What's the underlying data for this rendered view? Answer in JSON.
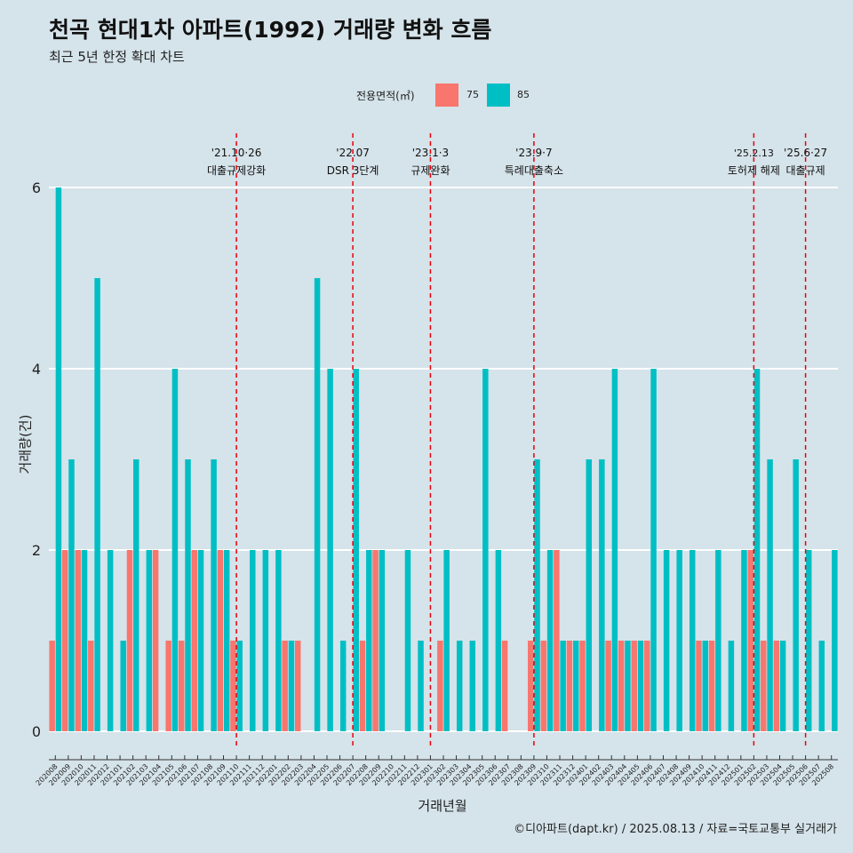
{
  "header": {
    "title": "천곡 현대1차 아파트(1992) 거래량 변화 흐름",
    "subtitle": "최근 5년 한정 확대 차트"
  },
  "caption": "©디아파트(dapt.kr) / 2025.08.13 / 자료=국토교통부 실거래가",
  "colors": {
    "background": "#d5e3ea",
    "grid": "#ffffff",
    "series_75": "#f8766d",
    "series_85": "#00bfc4",
    "event_line": "#e8000b"
  },
  "chart_data": {
    "type": "bar",
    "title": "천곡 현대1차 아파트(1992) 거래량 변화 흐름",
    "xlabel": "거래년월",
    "ylabel": "거래량(건)",
    "ylim": [
      0,
      6
    ],
    "yticks": [
      0,
      2,
      4,
      6
    ],
    "legend": {
      "title": "전용면적(㎡)",
      "position": "top",
      "entries": [
        "75",
        "85"
      ]
    },
    "categories": [
      "202008",
      "202009",
      "202010",
      "202011",
      "202012",
      "202101",
      "202102",
      "202103",
      "202104",
      "202105",
      "202106",
      "202107",
      "202108",
      "202109",
      "202110",
      "202111",
      "202112",
      "202201",
      "202202",
      "202203",
      "202204",
      "202205",
      "202206",
      "202207",
      "202208",
      "202209",
      "202210",
      "202211",
      "202212",
      "202301",
      "202302",
      "202303",
      "202304",
      "202305",
      "202306",
      "202307",
      "202308",
      "202309",
      "202310",
      "202311",
      "202312",
      "202401",
      "202402",
      "202403",
      "202404",
      "202405",
      "202406",
      "202407",
      "202408",
      "202409",
      "202410",
      "202411",
      "202412",
      "202501",
      "202502",
      "202503",
      "202504",
      "202505",
      "202506",
      "202507",
      "202508"
    ],
    "series": [
      {
        "name": "75",
        "values": [
          1,
          2,
          2,
          1,
          0,
          0,
          2,
          0,
          2,
          1,
          1,
          2,
          0,
          2,
          1,
          0,
          0,
          0,
          1,
          1,
          0,
          0,
          0,
          0,
          1,
          2,
          0,
          0,
          0,
          0,
          1,
          0,
          0,
          0,
          0,
          1,
          0,
          1,
          1,
          2,
          1,
          1,
          0,
          1,
          1,
          1,
          1,
          0,
          0,
          0,
          1,
          1,
          0,
          0,
          2,
          1,
          1,
          0,
          0,
          0,
          0
        ]
      },
      {
        "name": "85",
        "values": [
          6,
          3,
          2,
          5,
          2,
          1,
          3,
          2,
          0,
          4,
          3,
          2,
          3,
          2,
          1,
          2,
          2,
          2,
          1,
          0,
          5,
          4,
          1,
          4,
          2,
          2,
          0,
          2,
          1,
          0,
          2,
          1,
          1,
          4,
          2,
          0,
          0,
          3,
          2,
          1,
          1,
          3,
          3,
          4,
          1,
          1,
          4,
          2,
          2,
          2,
          1,
          2,
          1,
          2,
          4,
          3,
          1,
          3,
          2,
          1,
          2
        ]
      }
    ],
    "annotations": [
      {
        "index": 14.5,
        "date": "'21.10·26",
        "text": "대출규제강화"
      },
      {
        "index": 23.5,
        "date": "'22.07",
        "text": "DSR 3단계"
      },
      {
        "index": 29.5,
        "date": "'23.1·3",
        "text": "규제완화"
      },
      {
        "index": 37.5,
        "date": "'23.9·7",
        "text": "특례대출축소"
      },
      {
        "index": 54.5,
        "date": "'25.2.13",
        "text": "토허제 해제"
      },
      {
        "index": 58.5,
        "date": "'25.6·27",
        "text": "대출규제"
      }
    ]
  }
}
